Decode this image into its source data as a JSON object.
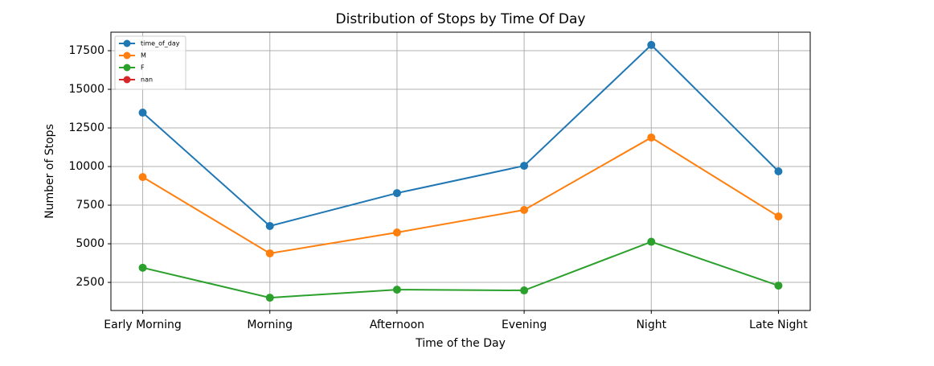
{
  "chart_data": {
    "type": "line",
    "title": "Distribution of Stops by Time Of Day",
    "xlabel": "Time of the Day",
    "ylabel": "Number of Stops",
    "categories": [
      "Early Morning",
      "Morning",
      "Afternoon",
      "Evening",
      "Night",
      "Late Night"
    ],
    "series": [
      {
        "name": "time_of_day",
        "color": "#1f77b4",
        "values": [
          13490,
          6150,
          8280,
          10050,
          17870,
          9690
        ]
      },
      {
        "name": "M",
        "color": "#ff7f0e",
        "values": [
          9320,
          4380,
          5730,
          7190,
          11880,
          6770
        ]
      },
      {
        "name": "F",
        "color": "#2ca02c",
        "values": [
          3450,
          1510,
          2030,
          1980,
          5130,
          2290
        ]
      },
      {
        "name": "nan",
        "color": "#d62728",
        "values": [
          null,
          null,
          null,
          null,
          null,
          null
        ]
      }
    ],
    "ylim": [
      680,
      18700
    ],
    "yticks": [
      2500,
      5000,
      7500,
      10000,
      12500,
      15000,
      17500
    ],
    "grid": true,
    "legend": "upper left",
    "markers": true
  }
}
